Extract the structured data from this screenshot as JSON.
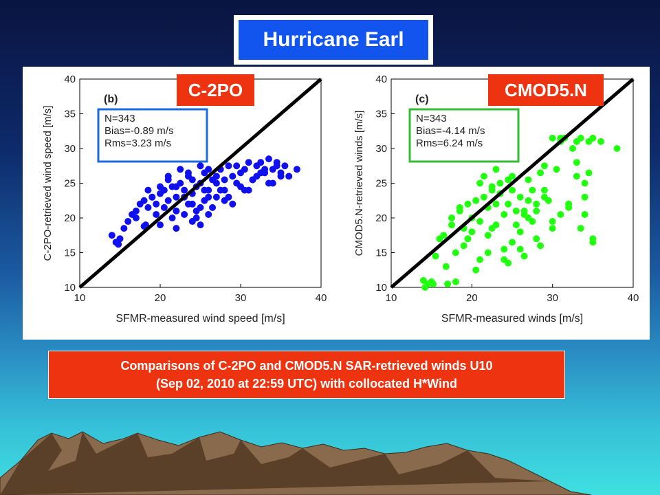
{
  "title": "Hurricane Earl",
  "tags": {
    "left": "C-2PO",
    "right": "CMOD5.N"
  },
  "caption": {
    "line1": "Comparisons of C-2PO and CMOD5.N SAR-retrieved winds U10",
    "line2": "(Sep 02, 2010 at 22:59 UTC) with collocated H*Wind"
  },
  "colors": {
    "title_bg": "#1155ee",
    "tag_bg": "#ee3311",
    "left_points": "#1010ee",
    "right_points": "#22ff11",
    "left_stats_border": "#1a6ae0",
    "right_stats_border": "#33bb33"
  },
  "chart_data": [
    {
      "type": "scatter",
      "panel_label": "(b)",
      "xlabel": "SFMR-measured wind speed [m/s]",
      "ylabel": "C-2PO-retrieved wind speed [m/s]",
      "xlim": [
        10,
        40
      ],
      "ylim": [
        10,
        40
      ],
      "xticks": [
        "10",
        "20",
        "30",
        "40"
      ],
      "yticks": [
        "10",
        "15",
        "20",
        "25",
        "30",
        "35",
        "40"
      ],
      "stats": [
        "N=343",
        "Bias=-0.89 m/s",
        "Rms=3.23 m/s"
      ],
      "color": "#1010ee",
      "reference_line": [
        [
          10,
          10
        ],
        [
          40,
          40
        ]
      ],
      "x": [
        14.0,
        14.5,
        15.0,
        14.8,
        15.5,
        16.0,
        16.5,
        17.0,
        17.5,
        18.0,
        18.5,
        18.2,
        19.0,
        19.5,
        20.0,
        20.5,
        21.0,
        21.5,
        22.0,
        22.5,
        23.0,
        23.5,
        24.0,
        24.5,
        25.0,
        25.5,
        26.0,
        26.5,
        27.0,
        27.5,
        28.0,
        28.5,
        29.0,
        29.5,
        30.0,
        30.5,
        31.0,
        31.5,
        32.0,
        32.5,
        33.0,
        33.5,
        34.0,
        34.5,
        35.0,
        35.5,
        36.0,
        37.0,
        22.0,
        23.0,
        24.0,
        25.0,
        26.0,
        21.0,
        20.0,
        19.0,
        18.5,
        22.5,
        23.5,
        24.5,
        25.5,
        26.5,
        27.5,
        28.5,
        29.5,
        30.5,
        31.5,
        32.5,
        33.5,
        34.5,
        21.5,
        20.5,
        24.0,
        26.0,
        28.0,
        30.0,
        32.0,
        34.0,
        22.0,
        25.0,
        27.0,
        29.0,
        31.0,
        33.0,
        35.0,
        19.5,
        21.0,
        23.0,
        25.0,
        27.0,
        20.0,
        22.0,
        24.0,
        26.0,
        28.0,
        23.5,
        24.5,
        25.5,
        18.0,
        17.0
      ],
      "y": [
        17.5,
        16.5,
        17.0,
        16.2,
        18.5,
        19.5,
        20.5,
        21.0,
        22.0,
        22.5,
        21.5,
        19.0,
        23.0,
        22.0,
        23.5,
        24.0,
        22.5,
        24.5,
        23.0,
        25.0,
        24.0,
        26.0,
        23.5,
        24.5,
        25.0,
        26.5,
        24.0,
        25.5,
        26.0,
        27.0,
        25.5,
        27.5,
        26.0,
        27.5,
        26.5,
        27.0,
        28.0,
        25.5,
        27.5,
        28.0,
        26.5,
        28.5,
        27.0,
        28.0,
        26.5,
        27.5,
        26.0,
        27.0,
        21.0,
        20.5,
        22.0,
        21.5,
        23.0,
        25.5,
        24.5,
        23.0,
        24.0,
        27.0,
        26.5,
        21.0,
        22.5,
        21.5,
        24.0,
        23.0,
        25.0,
        24.0,
        25.5,
        26.5,
        25.0,
        27.5,
        20.0,
        21.5,
        19.5,
        20.5,
        22.5,
        24.5,
        26.0,
        25.0,
        18.5,
        19.0,
        23.0,
        22.0,
        24.0,
        27.0,
        26.0,
        20.5,
        26.0,
        23.0,
        27.5,
        25.0,
        19.0,
        24.5,
        25.5,
        27.0,
        24.0,
        22.0,
        20.0,
        24.0,
        18.8,
        20.0
      ]
    },
    {
      "type": "scatter",
      "panel_label": "(c)",
      "xlabel": "SFMR-measured winds [m/s]",
      "ylabel": "CMOD5.N-retrieved winds [m/s]",
      "xlim": [
        10,
        40
      ],
      "ylim": [
        10,
        40
      ],
      "xticks": [
        "10",
        "20",
        "30",
        "40"
      ],
      "yticks": [
        "10",
        "15",
        "20",
        "25",
        "30",
        "35",
        "40"
      ],
      "stats": [
        "N=343",
        "Bias=-4.14 m/s",
        "Rms=6.24 m/s"
      ],
      "color": "#22ff11",
      "reference_line": [
        [
          10,
          10
        ],
        [
          40,
          40
        ]
      ],
      "x": [
        14.0,
        14.5,
        15.0,
        15.5,
        16.0,
        16.5,
        17.0,
        17.5,
        18.0,
        18.5,
        19.0,
        19.5,
        20.0,
        20.5,
        21.0,
        21.5,
        22.0,
        22.5,
        23.0,
        23.5,
        24.0,
        24.5,
        25.0,
        25.5,
        26.0,
        26.5,
        27.0,
        27.5,
        28.0,
        28.5,
        29.0,
        29.5,
        30.0,
        30.5,
        31.0,
        31.5,
        32.0,
        32.5,
        33.0,
        33.5,
        34.0,
        34.5,
        35.0,
        36.0,
        38.0,
        14.2,
        15.2,
        16.8,
        18.0,
        19.0,
        20.0,
        21.0,
        22.0,
        23.0,
        24.0,
        25.0,
        26.0,
        27.0,
        28.0,
        29.0,
        30.0,
        31.0,
        32.0,
        33.0,
        34.0,
        35.0,
        21.5,
        22.5,
        23.5,
        24.5,
        25.5,
        26.5,
        27.5,
        20.5,
        19.5,
        22.0,
        24.0,
        26.0,
        28.0,
        30.0,
        32.0,
        34.0,
        23.0,
        25.0,
        27.0,
        29.0,
        31.0,
        33.0,
        35.0,
        21.0,
        24.5,
        26.5,
        28.5,
        22.5,
        17.5,
        18.5,
        34.5,
        33.5
      ],
      "y": [
        11.0,
        10.5,
        10.8,
        14.5,
        17.0,
        17.5,
        10.5,
        19.0,
        10.8,
        21.0,
        18.5,
        22.0,
        20.0,
        22.5,
        19.5,
        23.0,
        21.5,
        24.0,
        22.0,
        25.0,
        20.5,
        25.5,
        24.0,
        19.0,
        23.0,
        21.0,
        22.5,
        24.0,
        22.0,
        26.5,
        24.0,
        22.5,
        31.5,
        27.0,
        31.0,
        31.5,
        21.5,
        30.0,
        28.0,
        31.5,
        25.0,
        31.0,
        31.5,
        31.0,
        30.0,
        10.0,
        10.5,
        13.0,
        15.0,
        16.0,
        18.0,
        14.0,
        17.5,
        19.0,
        15.5,
        16.5,
        18.0,
        20.0,
        21.0,
        23.0,
        19.5,
        20.5,
        22.0,
        26.0,
        20.5,
        17.0,
        26.0,
        24.5,
        23.5,
        22.0,
        21.0,
        20.5,
        19.5,
        12.5,
        17.0,
        15.0,
        14.0,
        15.5,
        17.0,
        18.5,
        22.0,
        23.0,
        27.0,
        26.0,
        25.5,
        27.5,
        31.5,
        31.0,
        16.5,
        25.0,
        13.5,
        14.5,
        16.0,
        18.5,
        20.0,
        21.5,
        26.5,
        18.5
      ]
    }
  ]
}
